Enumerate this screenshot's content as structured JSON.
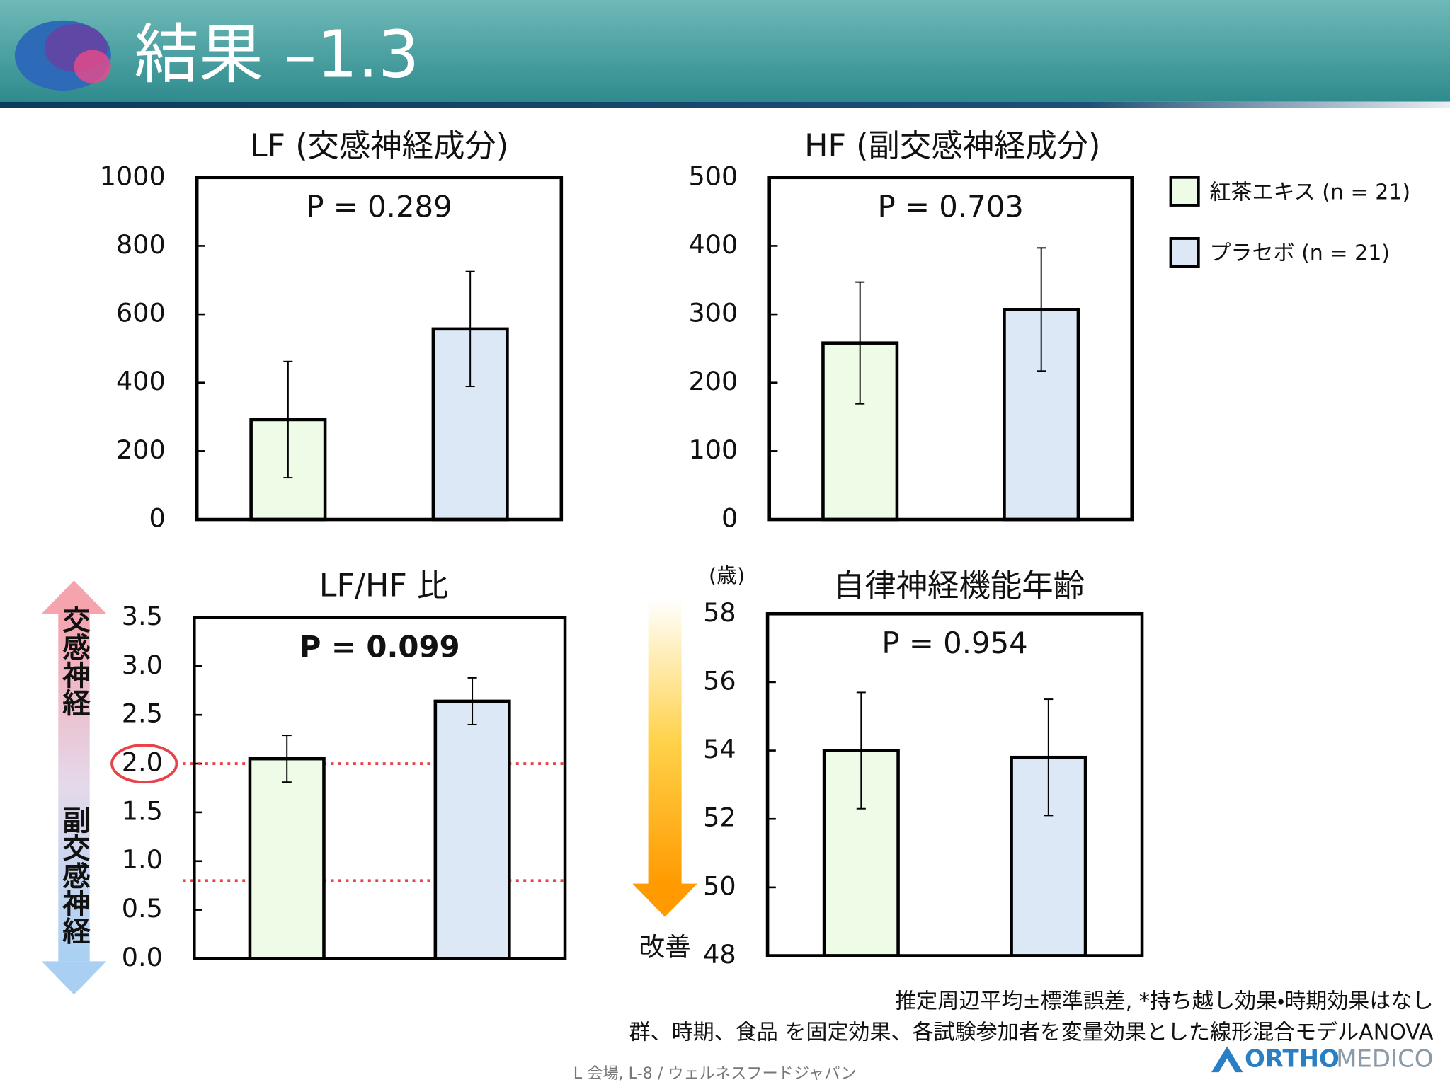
{
  "header": {
    "title": "結果 –1.3"
  },
  "legend": [
    {
      "name": "紅茶エキス (n = 21)",
      "color": "#eefbe6"
    },
    {
      "name": "プラセボ (n = 21)",
      "color": "#dde8f6"
    }
  ],
  "chart_data": [
    {
      "type": "bar",
      "title": "LF (交感神経成分)",
      "annotation": "P = 0.289",
      "values": [
        292,
        557
      ],
      "errors": [
        170,
        168
      ],
      "ylim": [
        0,
        1000
      ],
      "yticks": [
        0,
        200,
        400,
        600,
        800,
        1000
      ]
    },
    {
      "type": "bar",
      "title": "HF (副交感神経成分)",
      "annotation": "P = 0.703",
      "values": [
        258,
        307
      ],
      "errors": [
        89,
        90
      ],
      "ylim": [
        0,
        500
      ],
      "yticks": [
        0,
        100,
        200,
        300,
        400,
        500
      ]
    },
    {
      "type": "bar",
      "title": "LF/HF 比",
      "annotation": "P = 0.099",
      "annotation_bold": true,
      "values": [
        2.05,
        2.64
      ],
      "errors": [
        0.24,
        0.24
      ],
      "ylim": [
        0,
        3.5
      ],
      "yticks": [
        {
          "value": 0,
          "label": "0.0"
        },
        0.5,
        {
          "value": 1,
          "label": "1.0"
        },
        1.5,
        {
          "value": 2,
          "label": "2.0"
        },
        2.5,
        {
          "value": 3,
          "label": "3.0"
        },
        3.5
      ],
      "reference_lines": [
        2.0,
        0.8
      ],
      "reference_color": "#e8434a",
      "highlight_ytick": 4
    },
    {
      "type": "bar",
      "title": "自律神経機能年齢",
      "annotation": "P = 0.954",
      "y_unit": "(歳)",
      "values": [
        54.0,
        53.8
      ],
      "errors": [
        1.7,
        1.7
      ],
      "ylim": [
        48,
        58
      ],
      "yticks": [
        48,
        50,
        52,
        54,
        56,
        58
      ]
    }
  ],
  "side_labels": {
    "sympathetic": "交感神経",
    "parasympathetic": "副交感神経",
    "improvement": "改善"
  },
  "footnotes": [
    "推定周辺平均±標準誤差, *持ち越し効果・時期効果はなし",
    "群、時期、食品 を固定効果、各試験参加者を変量効果とした線形混合モデルANOVA"
  ],
  "footer": "L 会場, L-8 / ウェルネスフードジャパン",
  "logo": {
    "main": "ORTHO",
    "sub": "MEDICO"
  }
}
